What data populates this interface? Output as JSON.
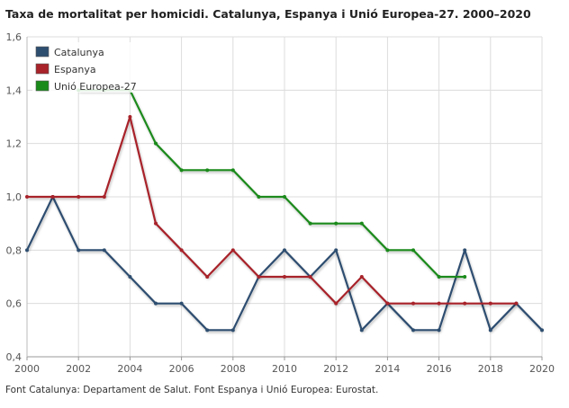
{
  "title": "Taxa de mortalitat per homicidi. Catalunya, Espanya i Unió Europea-27. 2000–2020",
  "source": "Font Catalunya: Departament de Salut. Font Espanya i Unió Europea: Eurostat.",
  "chart_data": {
    "type": "line",
    "title": "Taxa de mortalitat per homicidi. Catalunya, Espanya i Unió Europea-27. 2000–2020",
    "xlim": [
      2000,
      2020
    ],
    "ylim": [
      0.4,
      1.6
    ],
    "x_ticks": [
      "2000",
      "2002",
      "2004",
      "2006",
      "2008",
      "2010",
      "2012",
      "2014",
      "2016",
      "2018",
      "2020"
    ],
    "y_ticks": [
      "0,4",
      "0,6",
      "0,8",
      "1,0",
      "1,2",
      "1,4",
      "1,6"
    ],
    "grid": true,
    "legend_position": "top-left",
    "series": [
      {
        "name": "Catalunya",
        "color": "#2e4e70",
        "x": [
          2000,
          2001,
          2002,
          2003,
          2004,
          2005,
          2006,
          2007,
          2008,
          2009,
          2010,
          2011,
          2012,
          2013,
          2014,
          2015,
          2016,
          2017,
          2018,
          2019,
          2020
        ],
        "values": [
          0.8,
          1.0,
          0.8,
          0.8,
          0.7,
          0.6,
          0.6,
          0.5,
          0.5,
          0.7,
          0.8,
          0.7,
          0.8,
          0.5,
          0.6,
          0.5,
          0.5,
          0.8,
          0.5,
          0.6,
          0.5
        ]
      },
      {
        "name": "Espanya",
        "color": "#a8232a",
        "x": [
          2000,
          2001,
          2002,
          2003,
          2004,
          2005,
          2006,
          2007,
          2008,
          2009,
          2010,
          2011,
          2012,
          2013,
          2014,
          2015,
          2016,
          2017,
          2018,
          2019
        ],
        "values": [
          1.0,
          1.0,
          1.0,
          1.0,
          1.3,
          0.9,
          0.8,
          0.7,
          0.8,
          0.7,
          0.7,
          0.7,
          0.6,
          0.7,
          0.6,
          0.6,
          0.6,
          0.6,
          0.6,
          0.6
        ]
      },
      {
        "name": "Unió Europea-27",
        "color": "#1a8a1a",
        "x": [
          2002,
          2003,
          2004,
          2005,
          2006,
          2007,
          2008,
          2009,
          2010,
          2011,
          2012,
          2013,
          2014,
          2015,
          2016,
          2017
        ],
        "values": [
          1.4,
          1.4,
          1.4,
          1.2,
          1.1,
          1.1,
          1.1,
          1.0,
          1.0,
          0.9,
          0.9,
          0.9,
          0.8,
          0.8,
          0.7,
          0.7
        ]
      }
    ]
  }
}
